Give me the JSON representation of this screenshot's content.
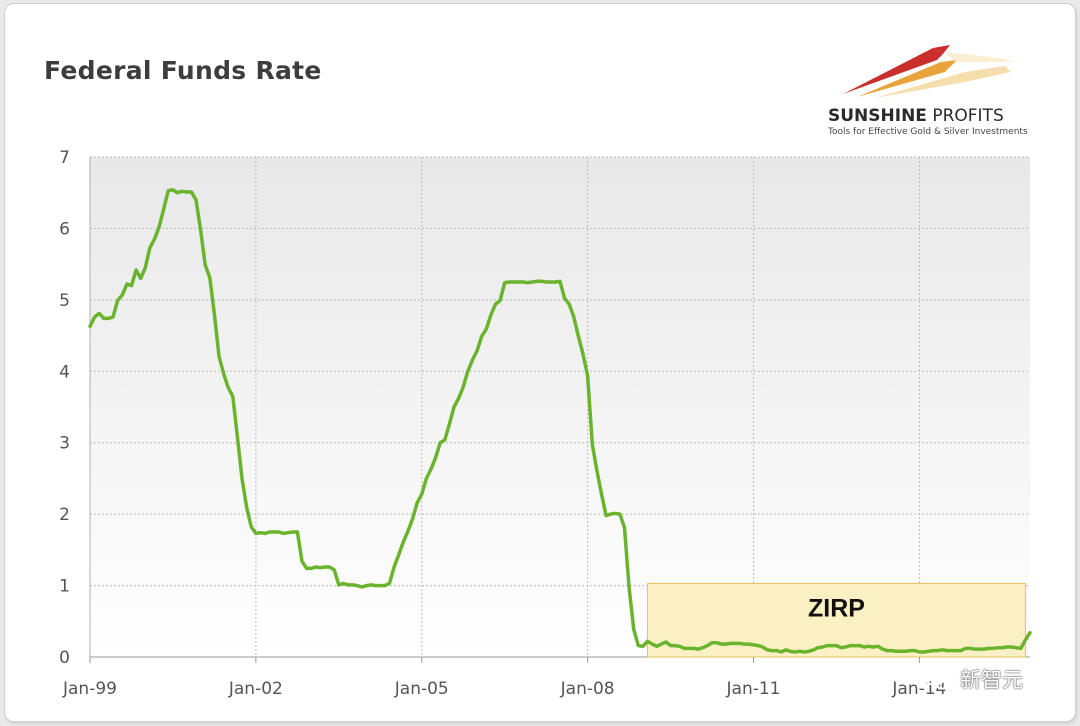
{
  "title": "Federal Funds Rate",
  "logo": {
    "name_bold": "SUNSHINE",
    "name_regular": " PROFITS",
    "tagline": "Tools for Effective Gold & Silver Investments"
  },
  "watermark": {
    "text": "新智元",
    "icon": "wechat-icon"
  },
  "colors": {
    "line": "#6ab42d",
    "plot_bg_top": "#e8e8e8",
    "plot_bg_bottom": "#ffffff",
    "grid": "#bdbdbd",
    "zirp_fill": "#fbf0c4",
    "zirp_border": "#e6c35a"
  },
  "chart_data": {
    "type": "line",
    "title": "Federal Funds Rate",
    "xlabel": "",
    "ylabel": "",
    "x_start": "Jan-99",
    "x_unit": "months since Jan-99",
    "xlim": [
      0,
      204
    ],
    "ylim": [
      0,
      7
    ],
    "y_ticks": [
      0,
      1,
      2,
      3,
      4,
      5,
      6,
      7
    ],
    "x_ticks": [
      {
        "label": "Jan-99",
        "x": 0
      },
      {
        "label": "Jan-02",
        "x": 36
      },
      {
        "label": "Jan-05",
        "x": 72
      },
      {
        "label": "Jan-08",
        "x": 108
      },
      {
        "label": "Jan-11",
        "x": 144
      },
      {
        "label": "Jan-14",
        "x": 180
      }
    ],
    "grid": true,
    "annotation": {
      "label": "ZIRP",
      "x_start": 121,
      "x_end": 203,
      "y_start": 0,
      "y_end": 1.03
    },
    "series": [
      {
        "name": "Federal Funds Rate",
        "points": [
          [
            0,
            4.63
          ],
          [
            1,
            4.76
          ],
          [
            2,
            4.81
          ],
          [
            3,
            4.74
          ],
          [
            4,
            4.74
          ],
          [
            5,
            4.76
          ],
          [
            6,
            4.99
          ],
          [
            7,
            5.07
          ],
          [
            8,
            5.22
          ],
          [
            9,
            5.2
          ],
          [
            10,
            5.42
          ],
          [
            11,
            5.3
          ],
          [
            12,
            5.45
          ],
          [
            13,
            5.73
          ],
          [
            14,
            5.85
          ],
          [
            15,
            6.02
          ],
          [
            16,
            6.27
          ],
          [
            17,
            6.53
          ],
          [
            18,
            6.54
          ],
          [
            19,
            6.5
          ],
          [
            20,
            6.52
          ],
          [
            21,
            6.51
          ],
          [
            22,
            6.51
          ],
          [
            23,
            6.4
          ],
          [
            24,
            5.98
          ],
          [
            25,
            5.49
          ],
          [
            26,
            5.31
          ],
          [
            27,
            4.8
          ],
          [
            28,
            4.21
          ],
          [
            29,
            3.97
          ],
          [
            30,
            3.77
          ],
          [
            31,
            3.65
          ],
          [
            32,
            3.07
          ],
          [
            33,
            2.49
          ],
          [
            34,
            2.09
          ],
          [
            35,
            1.82
          ],
          [
            36,
            1.73
          ],
          [
            37,
            1.74
          ],
          [
            38,
            1.73
          ],
          [
            39,
            1.75
          ],
          [
            40,
            1.75
          ],
          [
            41,
            1.75
          ],
          [
            42,
            1.73
          ],
          [
            43,
            1.74
          ],
          [
            44,
            1.75
          ],
          [
            45,
            1.75
          ],
          [
            46,
            1.34
          ],
          [
            47,
            1.24
          ],
          [
            48,
            1.24
          ],
          [
            49,
            1.26
          ],
          [
            50,
            1.25
          ],
          [
            51,
            1.26
          ],
          [
            52,
            1.26
          ],
          [
            53,
            1.22
          ],
          [
            54,
            1.01
          ],
          [
            55,
            1.03
          ],
          [
            56,
            1.01
          ],
          [
            57,
            1.01
          ],
          [
            58,
            1.0
          ],
          [
            59,
            0.98
          ],
          [
            60,
            1.0
          ],
          [
            61,
            1.01
          ],
          [
            62,
            1.0
          ],
          [
            63,
            1.0
          ],
          [
            64,
            1.0
          ],
          [
            65,
            1.03
          ],
          [
            66,
            1.26
          ],
          [
            67,
            1.43
          ],
          [
            68,
            1.61
          ],
          [
            69,
            1.76
          ],
          [
            70,
            1.93
          ],
          [
            71,
            2.16
          ],
          [
            72,
            2.28
          ],
          [
            73,
            2.5
          ],
          [
            74,
            2.63
          ],
          [
            75,
            2.79
          ],
          [
            76,
            3.0
          ],
          [
            77,
            3.04
          ],
          [
            78,
            3.26
          ],
          [
            79,
            3.5
          ],
          [
            80,
            3.62
          ],
          [
            81,
            3.78
          ],
          [
            82,
            4.0
          ],
          [
            83,
            4.16
          ],
          [
            84,
            4.29
          ],
          [
            85,
            4.49
          ],
          [
            86,
            4.59
          ],
          [
            87,
            4.79
          ],
          [
            88,
            4.94
          ],
          [
            89,
            4.99
          ],
          [
            90,
            5.24
          ],
          [
            91,
            5.25
          ],
          [
            92,
            5.25
          ],
          [
            93,
            5.25
          ],
          [
            94,
            5.25
          ],
          [
            95,
            5.24
          ],
          [
            96,
            5.25
          ],
          [
            97,
            5.26
          ],
          [
            98,
            5.26
          ],
          [
            99,
            5.25
          ],
          [
            100,
            5.25
          ],
          [
            101,
            5.25
          ],
          [
            102,
            5.26
          ],
          [
            103,
            5.02
          ],
          [
            104,
            4.94
          ],
          [
            105,
            4.76
          ],
          [
            106,
            4.49
          ],
          [
            107,
            4.24
          ],
          [
            108,
            3.94
          ],
          [
            109,
            2.98
          ],
          [
            110,
            2.61
          ],
          [
            111,
            2.28
          ],
          [
            112,
            1.98
          ],
          [
            113,
            2.0
          ],
          [
            114,
            2.01
          ],
          [
            115,
            2.0
          ],
          [
            116,
            1.81
          ],
          [
            117,
            0.97
          ],
          [
            118,
            0.39
          ],
          [
            119,
            0.16
          ],
          [
            120,
            0.15
          ],
          [
            121,
            0.22
          ],
          [
            122,
            0.18
          ],
          [
            123,
            0.15
          ],
          [
            124,
            0.18
          ],
          [
            125,
            0.21
          ],
          [
            126,
            0.16
          ],
          [
            127,
            0.16
          ],
          [
            128,
            0.15
          ],
          [
            129,
            0.12
          ],
          [
            130,
            0.12
          ],
          [
            131,
            0.12
          ],
          [
            132,
            0.11
          ],
          [
            133,
            0.13
          ],
          [
            134,
            0.16
          ],
          [
            135,
            0.2
          ],
          [
            136,
            0.2
          ],
          [
            137,
            0.18
          ],
          [
            138,
            0.18
          ],
          [
            139,
            0.19
          ],
          [
            140,
            0.19
          ],
          [
            141,
            0.19
          ],
          [
            142,
            0.18
          ],
          [
            143,
            0.18
          ],
          [
            144,
            0.17
          ],
          [
            145,
            0.16
          ],
          [
            146,
            0.14
          ],
          [
            147,
            0.1
          ],
          [
            148,
            0.09
          ],
          [
            149,
            0.09
          ],
          [
            150,
            0.07
          ],
          [
            151,
            0.1
          ],
          [
            152,
            0.08
          ],
          [
            153,
            0.07
          ],
          [
            154,
            0.08
          ],
          [
            155,
            0.07
          ],
          [
            156,
            0.08
          ],
          [
            157,
            0.1
          ],
          [
            158,
            0.13
          ],
          [
            159,
            0.14
          ],
          [
            160,
            0.16
          ],
          [
            161,
            0.16
          ],
          [
            162,
            0.16
          ],
          [
            163,
            0.13
          ],
          [
            164,
            0.14
          ],
          [
            165,
            0.16
          ],
          [
            166,
            0.16
          ],
          [
            167,
            0.16
          ],
          [
            168,
            0.14
          ],
          [
            169,
            0.15
          ],
          [
            170,
            0.14
          ],
          [
            171,
            0.15
          ],
          [
            172,
            0.11
          ],
          [
            173,
            0.09
          ],
          [
            174,
            0.09
          ],
          [
            175,
            0.08
          ],
          [
            176,
            0.08
          ],
          [
            177,
            0.08
          ],
          [
            178,
            0.09
          ],
          [
            179,
            0.09
          ],
          [
            180,
            0.07
          ],
          [
            181,
            0.07
          ],
          [
            182,
            0.08
          ],
          [
            183,
            0.09
          ],
          [
            184,
            0.09
          ],
          [
            185,
            0.1
          ],
          [
            186,
            0.09
          ],
          [
            187,
            0.09
          ],
          [
            188,
            0.09
          ],
          [
            189,
            0.09
          ],
          [
            190,
            0.12
          ],
          [
            191,
            0.12
          ],
          [
            192,
            0.11
          ],
          [
            193,
            0.11
          ],
          [
            194,
            0.11
          ],
          [
            195,
            0.12
          ],
          [
            196,
            0.12
          ],
          [
            197,
            0.13
          ],
          [
            198,
            0.13
          ],
          [
            199,
            0.14
          ],
          [
            200,
            0.14
          ],
          [
            201,
            0.13
          ],
          [
            202,
            0.12
          ],
          [
            203,
            0.24
          ],
          [
            204,
            0.34
          ]
        ]
      }
    ]
  }
}
